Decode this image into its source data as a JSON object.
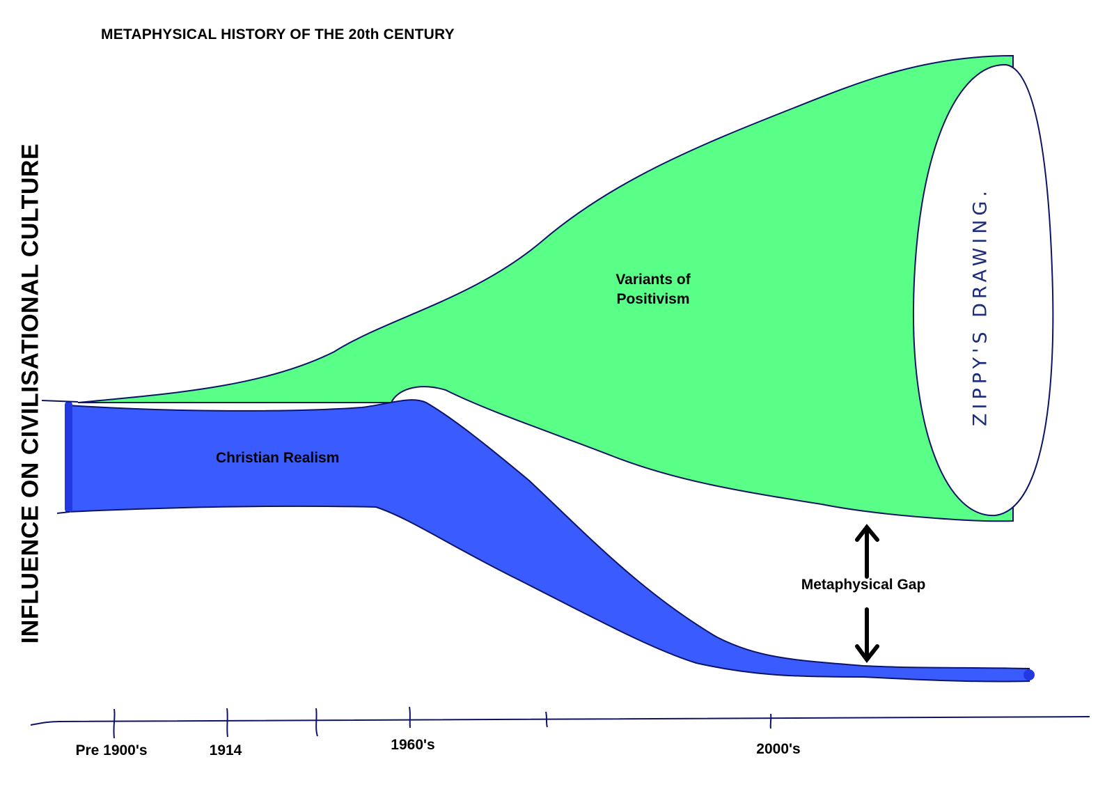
{
  "title": "METAPHYSICAL HISTORY OF THE 20th CENTURY",
  "y_axis_label": "INFLUENCE ON CIVILISATIONAL CULTURE",
  "regions": {
    "positivism": {
      "label_line1": "Variants of",
      "label_line2": "Positivism",
      "color": "#59ff87"
    },
    "christian": {
      "label": "Christian Realism",
      "color": "#3a5cff"
    },
    "handwritten": "ZIPPY'S DRAWING."
  },
  "gap_label": "Metaphysical Gap",
  "x_ticks": [
    "Pre 1900's",
    "1914",
    "1960's",
    "2000's"
  ],
  "colors": {
    "outline": "#0d1466",
    "arrow": "#000000"
  }
}
